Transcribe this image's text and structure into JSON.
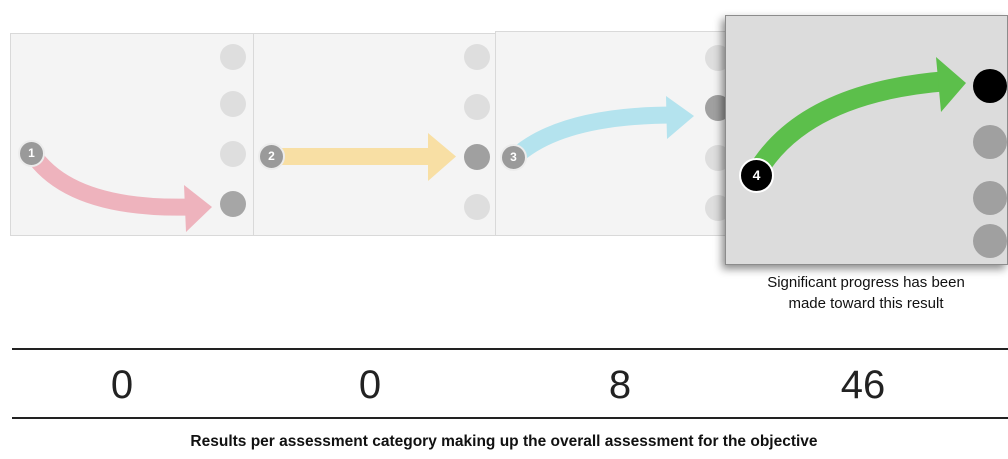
{
  "categories": [
    {
      "badge": "1",
      "arrow_color": "#eeb3bd",
      "selected_dot": 4,
      "dot_color": "#a6a6a6"
    },
    {
      "badge": "2",
      "arrow_color": "#f8dfa4",
      "selected_dot": 3,
      "dot_color": "#a0a0a0"
    },
    {
      "badge": "3",
      "arrow_color": "#b4e3ee",
      "selected_dot": 2,
      "dot_color": "#a0a0a0"
    },
    {
      "badge": "4",
      "arrow_color": "#5cbf4b",
      "selected_dot": 1,
      "dot_color": "#000000"
    }
  ],
  "highlight": {
    "caption_line1": "Significant progress has been",
    "caption_line2": "made toward this result"
  },
  "counts": [
    "0",
    "0",
    "8",
    "46"
  ],
  "footer": "Results per assessment category making up the overall assessment for the objective"
}
